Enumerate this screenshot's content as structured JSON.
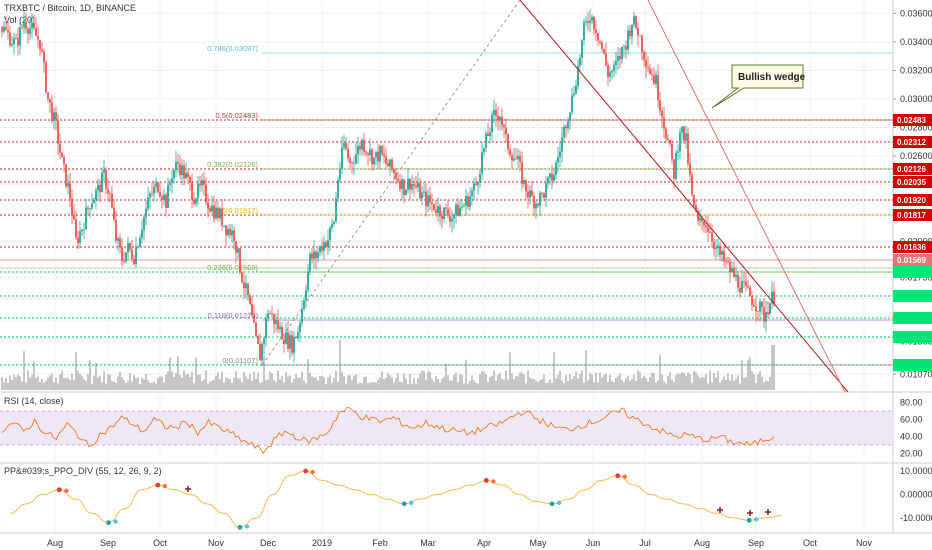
{
  "header": {
    "symbol": "TRXBTC / Bitcoin, 1D, BINANCE",
    "vol": "Vol (20)"
  },
  "callout": {
    "text": "Bullish wedge"
  },
  "chart_data": [
    {
      "type": "candlestick",
      "price_axis": {
        "ticks": [
          "0.03600",
          "0.03400",
          "0.03200",
          "0.03000",
          "0.02800",
          "0.02600",
          "0.02400",
          "0.02200",
          "0.02000",
          "0.01750",
          "0.01600",
          "0.01450",
          "0.01300",
          "0.01140",
          "0.01070"
        ],
        "ylim": [
          0.0096,
          0.0368
        ]
      },
      "time_axis": {
        "labels": [
          "Aug",
          "Sep",
          "Oct",
          "Nov",
          "Dec",
          "2019",
          "Feb",
          "Mar",
          "Apr",
          "May",
          "Jun",
          "Jul",
          "Aug",
          "Sep",
          "Oct",
          "Nov"
        ]
      },
      "price_path": [
        [
          0,
          0.0352
        ],
        [
          8,
          0.0345
        ],
        [
          16,
          0.0338
        ],
        [
          24,
          0.0355
        ],
        [
          32,
          0.0348
        ],
        [
          40,
          0.034
        ],
        [
          48,
          0.03
        ],
        [
          56,
          0.028
        ],
        [
          62,
          0.0255
        ],
        [
          70,
          0.0232
        ],
        [
          76,
          0.02
        ],
        [
          82,
          0.021
        ],
        [
          90,
          0.0228
        ],
        [
          98,
          0.0236
        ],
        [
          104,
          0.0246
        ],
        [
          110,
          0.0232
        ],
        [
          116,
          0.0202
        ],
        [
          122,
          0.0188
        ],
        [
          128,
          0.0195
        ],
        [
          134,
          0.019
        ],
        [
          142,
          0.0212
        ],
        [
          150,
          0.0232
        ],
        [
          158,
          0.024
        ],
        [
          166,
          0.0228
        ],
        [
          172,
          0.0248
        ],
        [
          178,
          0.0255
        ],
        [
          186,
          0.0245
        ],
        [
          194,
          0.0232
        ],
        [
          202,
          0.0238
        ],
        [
          208,
          0.0228
        ],
        [
          214,
          0.0222
        ],
        [
          220,
          0.0218
        ],
        [
          226,
          0.021
        ],
        [
          234,
          0.0205
        ],
        [
          240,
          0.0182
        ],
        [
          244,
          0.017
        ],
        [
          248,
          0.016
        ],
        [
          252,
          0.0145
        ],
        [
          256,
          0.013
        ],
        [
          260,
          0.012
        ],
        [
          264,
          0.0135
        ],
        [
          268,
          0.0152
        ],
        [
          274,
          0.0145
        ],
        [
          280,
          0.0138
        ],
        [
          286,
          0.0132
        ],
        [
          292,
          0.0128
        ],
        [
          298,
          0.0138
        ],
        [
          304,
          0.0162
        ],
        [
          310,
          0.0188
        ],
        [
          316,
          0.019
        ],
        [
          322,
          0.0198
        ],
        [
          328,
          0.0202
        ],
        [
          334,
          0.0215
        ],
        [
          338,
          0.0245
        ],
        [
          344,
          0.0268
        ],
        [
          350,
          0.0255
        ],
        [
          356,
          0.0262
        ],
        [
          362,
          0.027
        ],
        [
          368,
          0.0264
        ],
        [
          374,
          0.0258
        ],
        [
          380,
          0.0262
        ],
        [
          386,
          0.0255
        ],
        [
          392,
          0.025
        ],
        [
          398,
          0.0245
        ],
        [
          404,
          0.0238
        ],
        [
          410,
          0.0242
        ],
        [
          416,
          0.0238
        ],
        [
          422,
          0.0232
        ],
        [
          428,
          0.0228
        ],
        [
          434,
          0.0225
        ],
        [
          440,
          0.0222
        ],
        [
          446,
          0.022
        ],
        [
          452,
          0.0218
        ],
        [
          458,
          0.0222
        ],
        [
          464,
          0.0226
        ],
        [
          470,
          0.0232
        ],
        [
          476,
          0.024
        ],
        [
          482,
          0.026
        ],
        [
          488,
          0.0275
        ],
        [
          494,
          0.0288
        ],
        [
          500,
          0.029
        ],
        [
          506,
          0.027
        ],
        [
          512,
          0.0262
        ],
        [
          518,
          0.0255
        ],
        [
          524,
          0.024
        ],
        [
          530,
          0.0232
        ],
        [
          536,
          0.0228
        ],
        [
          542,
          0.0232
        ],
        [
          548,
          0.024
        ],
        [
          554,
          0.0248
        ],
        [
          560,
          0.0265
        ],
        [
          566,
          0.0285
        ],
        [
          572,
          0.03
        ],
        [
          578,
          0.0322
        ],
        [
          584,
          0.0348
        ],
        [
          590,
          0.036
        ],
        [
          596,
          0.035
        ],
        [
          602,
          0.0335
        ],
        [
          608,
          0.0318
        ],
        [
          614,
          0.032
        ],
        [
          620,
          0.033
        ],
        [
          626,
          0.034
        ],
        [
          632,
          0.0355
        ],
        [
          638,
          0.0348
        ],
        [
          644,
          0.0332
        ],
        [
          650,
          0.032
        ],
        [
          656,
          0.0312
        ],
        [
          662,
          0.029
        ],
        [
          668,
          0.027
        ],
        [
          674,
          0.0248
        ],
        [
          680,
          0.028
        ],
        [
          686,
          0.027
        ],
        [
          692,
          0.023
        ],
        [
          698,
          0.0212
        ],
        [
          704,
          0.0215
        ],
        [
          710,
          0.0208
        ],
        [
          716,
          0.0195
        ],
        [
          722,
          0.0188
        ],
        [
          728,
          0.0182
        ],
        [
          734,
          0.0176
        ],
        [
          740,
          0.017
        ],
        [
          746,
          0.0165
        ],
        [
          752,
          0.016
        ],
        [
          758,
          0.0155
        ],
        [
          764,
          0.0148
        ],
        [
          770,
          0.0158
        ],
        [
          774,
          0.0162
        ]
      ],
      "horizontal_levels": [
        {
          "price": "0.02483",
          "kind": "resistance"
        },
        {
          "price": "0.02312",
          "kind": "resistance"
        },
        {
          "price": "0.02126",
          "kind": "resistance"
        },
        {
          "price": "0.02035",
          "kind": "resistance"
        },
        {
          "price": "0.01920",
          "kind": "resistance"
        },
        {
          "price": "0.01817",
          "kind": "resistance"
        },
        {
          "price": "0.01636",
          "kind": "resistance"
        },
        {
          "price": "0.01569",
          "kind": "current"
        },
        {
          "price": "",
          "kind": "support"
        },
        {
          "price": "",
          "kind": "support"
        },
        {
          "price": "",
          "kind": "support"
        },
        {
          "price": "",
          "kind": "support"
        },
        {
          "price": "",
          "kind": "support"
        }
      ],
      "fib_levels": [
        {
          "label": "0.786(0.03097)",
          "color": "#5bb8e0"
        },
        {
          "label": "0.5(0.02483)",
          "color": "#c0392b"
        },
        {
          "label": "0.382(0.02126)",
          "color": "#7cb342"
        },
        {
          "label": "0.236(0.01817)",
          "color": "#e6b800"
        },
        {
          "label": "0.236(0.01569)",
          "color": "#7cb342"
        },
        {
          "label": "0.118(0.01275)",
          "color": "#9b59b6"
        },
        {
          "label": "0(0.01107)",
          "color": "#888888"
        }
      ]
    },
    {
      "type": "line",
      "title": "RSI (14, close)",
      "ticks": [
        "80.00",
        "60.00",
        "40.00",
        "20.00"
      ],
      "ylim": [
        10,
        90
      ],
      "band": [
        30,
        70
      ],
      "values": [
        48,
        56,
        46,
        58,
        44,
        38,
        54,
        42,
        28,
        42,
        50,
        62,
        55,
        46,
        60,
        52,
        50,
        58,
        45,
        56,
        50,
        44,
        36,
        30,
        22,
        35,
        46,
        40,
        34,
        38,
        46,
        68,
        72,
        64,
        60,
        58,
        62,
        54,
        50,
        56,
        52,
        48,
        46,
        44,
        48,
        52,
        56,
        64,
        70,
        62,
        56,
        50,
        48,
        52,
        56,
        60,
        66,
        70,
        62,
        56,
        50,
        44,
        40,
        42,
        38,
        36,
        40,
        34,
        32,
        30,
        36,
        40
      ]
    },
    {
      "type": "line",
      "title": "PP&#039;s_PPO_DIV (55, 12, 26, 9, 2)",
      "ticks": [
        "10.00000",
        "0.00000",
        "-10.00000"
      ],
      "ylim": [
        -16,
        13
      ],
      "values": [
        -8,
        -4,
        0,
        2,
        -2,
        -8,
        -12,
        -6,
        2,
        4,
        2,
        0,
        -4,
        -8,
        -14,
        -10,
        0,
        8,
        10,
        6,
        4,
        2,
        0,
        -2,
        -4,
        -2,
        0,
        2,
        4,
        6,
        4,
        0,
        -3,
        -4,
        -2,
        2,
        6,
        8,
        4,
        0,
        -2,
        -4,
        -6,
        -8,
        -10,
        -11,
        -10,
        -9
      ]
    }
  ]
}
